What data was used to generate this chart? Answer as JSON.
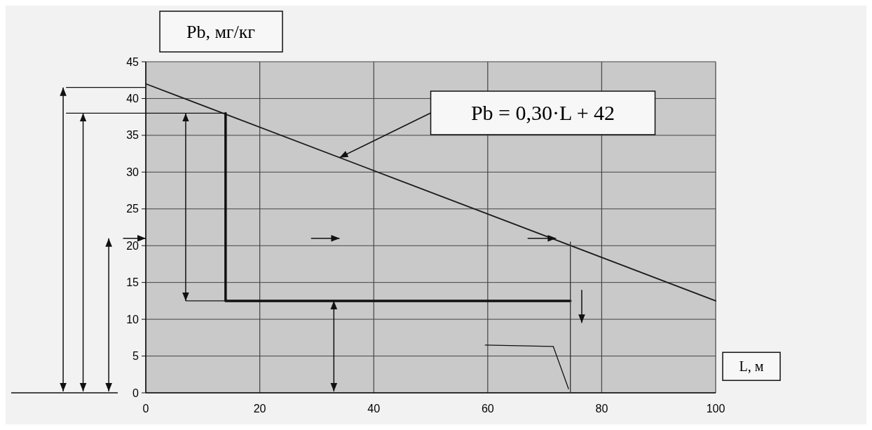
{
  "chart_data": {
    "type": "line",
    "xlabel": "L, м",
    "ylabel": "Pb, мг/кг",
    "xlim": [
      0,
      100
    ],
    "xticks": [
      0,
      20,
      40,
      60,
      80,
      100
    ],
    "ylim": [
      0,
      45
    ],
    "yticks": [
      0,
      5,
      10,
      15,
      20,
      25,
      30,
      35,
      40,
      45
    ],
    "grid": true,
    "marker": "none",
    "line_style": "solid",
    "series": [
      {
        "color": "#1a1a1a",
        "x": [
          0,
          100
        ],
        "values": [
          42,
          12.5
        ]
      },
      {
        "color": "#111111",
        "x": [
          14,
          14,
          74.5
        ],
        "values": [
          38,
          12.5,
          12.5
        ]
      },
      {
        "color": "#333333",
        "x": [
          74.5,
          74.5
        ],
        "values": [
          20.5,
          0
        ]
      }
    ],
    "annotations": [
      "Pb = 0,30·L + 42"
    ]
  }
}
